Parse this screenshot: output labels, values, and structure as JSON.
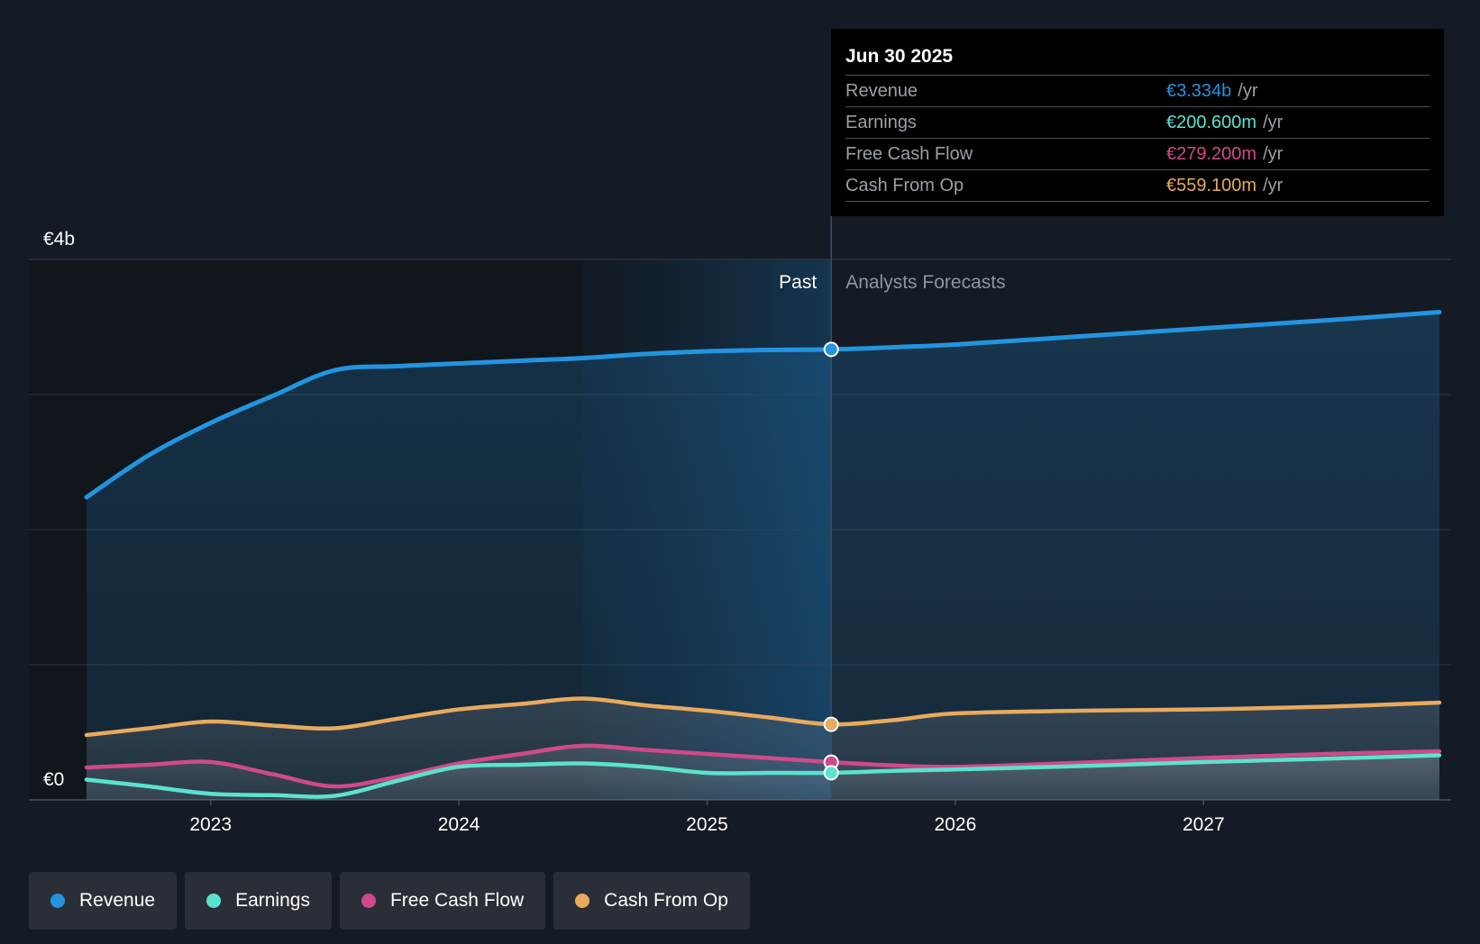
{
  "chart_data": {
    "type": "line",
    "title": "",
    "y_unit": "EUR",
    "ylim": [
      0,
      4
    ],
    "y_tick_labels": {
      "top": "€4b",
      "bottom": "€0"
    },
    "x_tick_labels": [
      "2023",
      "2024",
      "2025",
      "2026",
      "2027"
    ],
    "x_range": [
      2022.5,
      2027.95
    ],
    "past_label": "Past",
    "forecast_label": "Analysts Forecasts",
    "divider_x": 2025.5,
    "highlight_start_x": 2024.5,
    "series": [
      {
        "name": "Revenue",
        "color": "#2394df",
        "x": [
          2022.5,
          2022.75,
          2023.0,
          2023.25,
          2023.5,
          2023.75,
          2024.0,
          2024.25,
          2024.5,
          2024.75,
          2025.0,
          2025.25,
          2025.5,
          2025.75,
          2026.0,
          2026.5,
          2027.0,
          2027.5,
          2027.95
        ],
        "values": [
          2.24,
          2.55,
          2.79,
          2.99,
          3.18,
          3.21,
          3.23,
          3.25,
          3.27,
          3.3,
          3.32,
          3.33,
          3.334,
          3.35,
          3.37,
          3.43,
          3.49,
          3.55,
          3.61
        ]
      },
      {
        "name": "Earnings",
        "color": "#5ce2cf",
        "x": [
          2022.5,
          2022.75,
          2023.0,
          2023.25,
          2023.5,
          2023.75,
          2024.0,
          2024.25,
          2024.5,
          2024.75,
          2025.0,
          2025.25,
          2025.5,
          2025.75,
          2026.0,
          2026.5,
          2027.0,
          2027.5,
          2027.95
        ],
        "values": [
          0.15,
          0.1,
          0.045,
          0.035,
          0.03,
          0.14,
          0.245,
          0.26,
          0.27,
          0.245,
          0.2,
          0.2,
          0.2006,
          0.215,
          0.225,
          0.25,
          0.28,
          0.305,
          0.33
        ]
      },
      {
        "name": "Free Cash Flow",
        "color": "#cf4a8a",
        "x": [
          2022.5,
          2022.75,
          2023.0,
          2023.25,
          2023.5,
          2023.75,
          2024.0,
          2024.25,
          2024.5,
          2024.75,
          2025.0,
          2025.25,
          2025.5,
          2025.75,
          2026.0,
          2026.5,
          2027.0,
          2027.5,
          2027.95
        ],
        "values": [
          0.24,
          0.26,
          0.28,
          0.19,
          0.1,
          0.17,
          0.27,
          0.34,
          0.4,
          0.37,
          0.34,
          0.31,
          0.2792,
          0.255,
          0.245,
          0.275,
          0.31,
          0.34,
          0.36
        ]
      },
      {
        "name": "Cash From Op",
        "color": "#e8aa5c",
        "x": [
          2022.5,
          2022.75,
          2023.0,
          2023.25,
          2023.5,
          2023.75,
          2024.0,
          2024.25,
          2024.5,
          2024.75,
          2025.0,
          2025.25,
          2025.5,
          2025.75,
          2026.0,
          2026.5,
          2027.0,
          2027.5,
          2027.95
        ],
        "values": [
          0.48,
          0.53,
          0.58,
          0.55,
          0.53,
          0.6,
          0.67,
          0.71,
          0.75,
          0.7,
          0.66,
          0.61,
          0.5591,
          0.59,
          0.64,
          0.66,
          0.67,
          0.69,
          0.72
        ]
      }
    ]
  },
  "tooltip": {
    "date": "Jun 30 2025",
    "unit": "/yr",
    "rows": [
      {
        "label": "Revenue",
        "value": "€3.334b",
        "color": "#2394df"
      },
      {
        "label": "Earnings",
        "value": "€200.600m",
        "color": "#5ce2cf"
      },
      {
        "label": "Free Cash Flow",
        "value": "€279.200m",
        "color": "#cf4a8a"
      },
      {
        "label": "Cash From Op",
        "value": "€559.100m",
        "color": "#e8aa5c"
      }
    ]
  },
  "legend": [
    {
      "label": "Revenue",
      "color": "#2394df"
    },
    {
      "label": "Earnings",
      "color": "#5ce2cf"
    },
    {
      "label": "Free Cash Flow",
      "color": "#cf4a8a"
    },
    {
      "label": "Cash From Op",
      "color": "#e8aa5c"
    }
  ]
}
